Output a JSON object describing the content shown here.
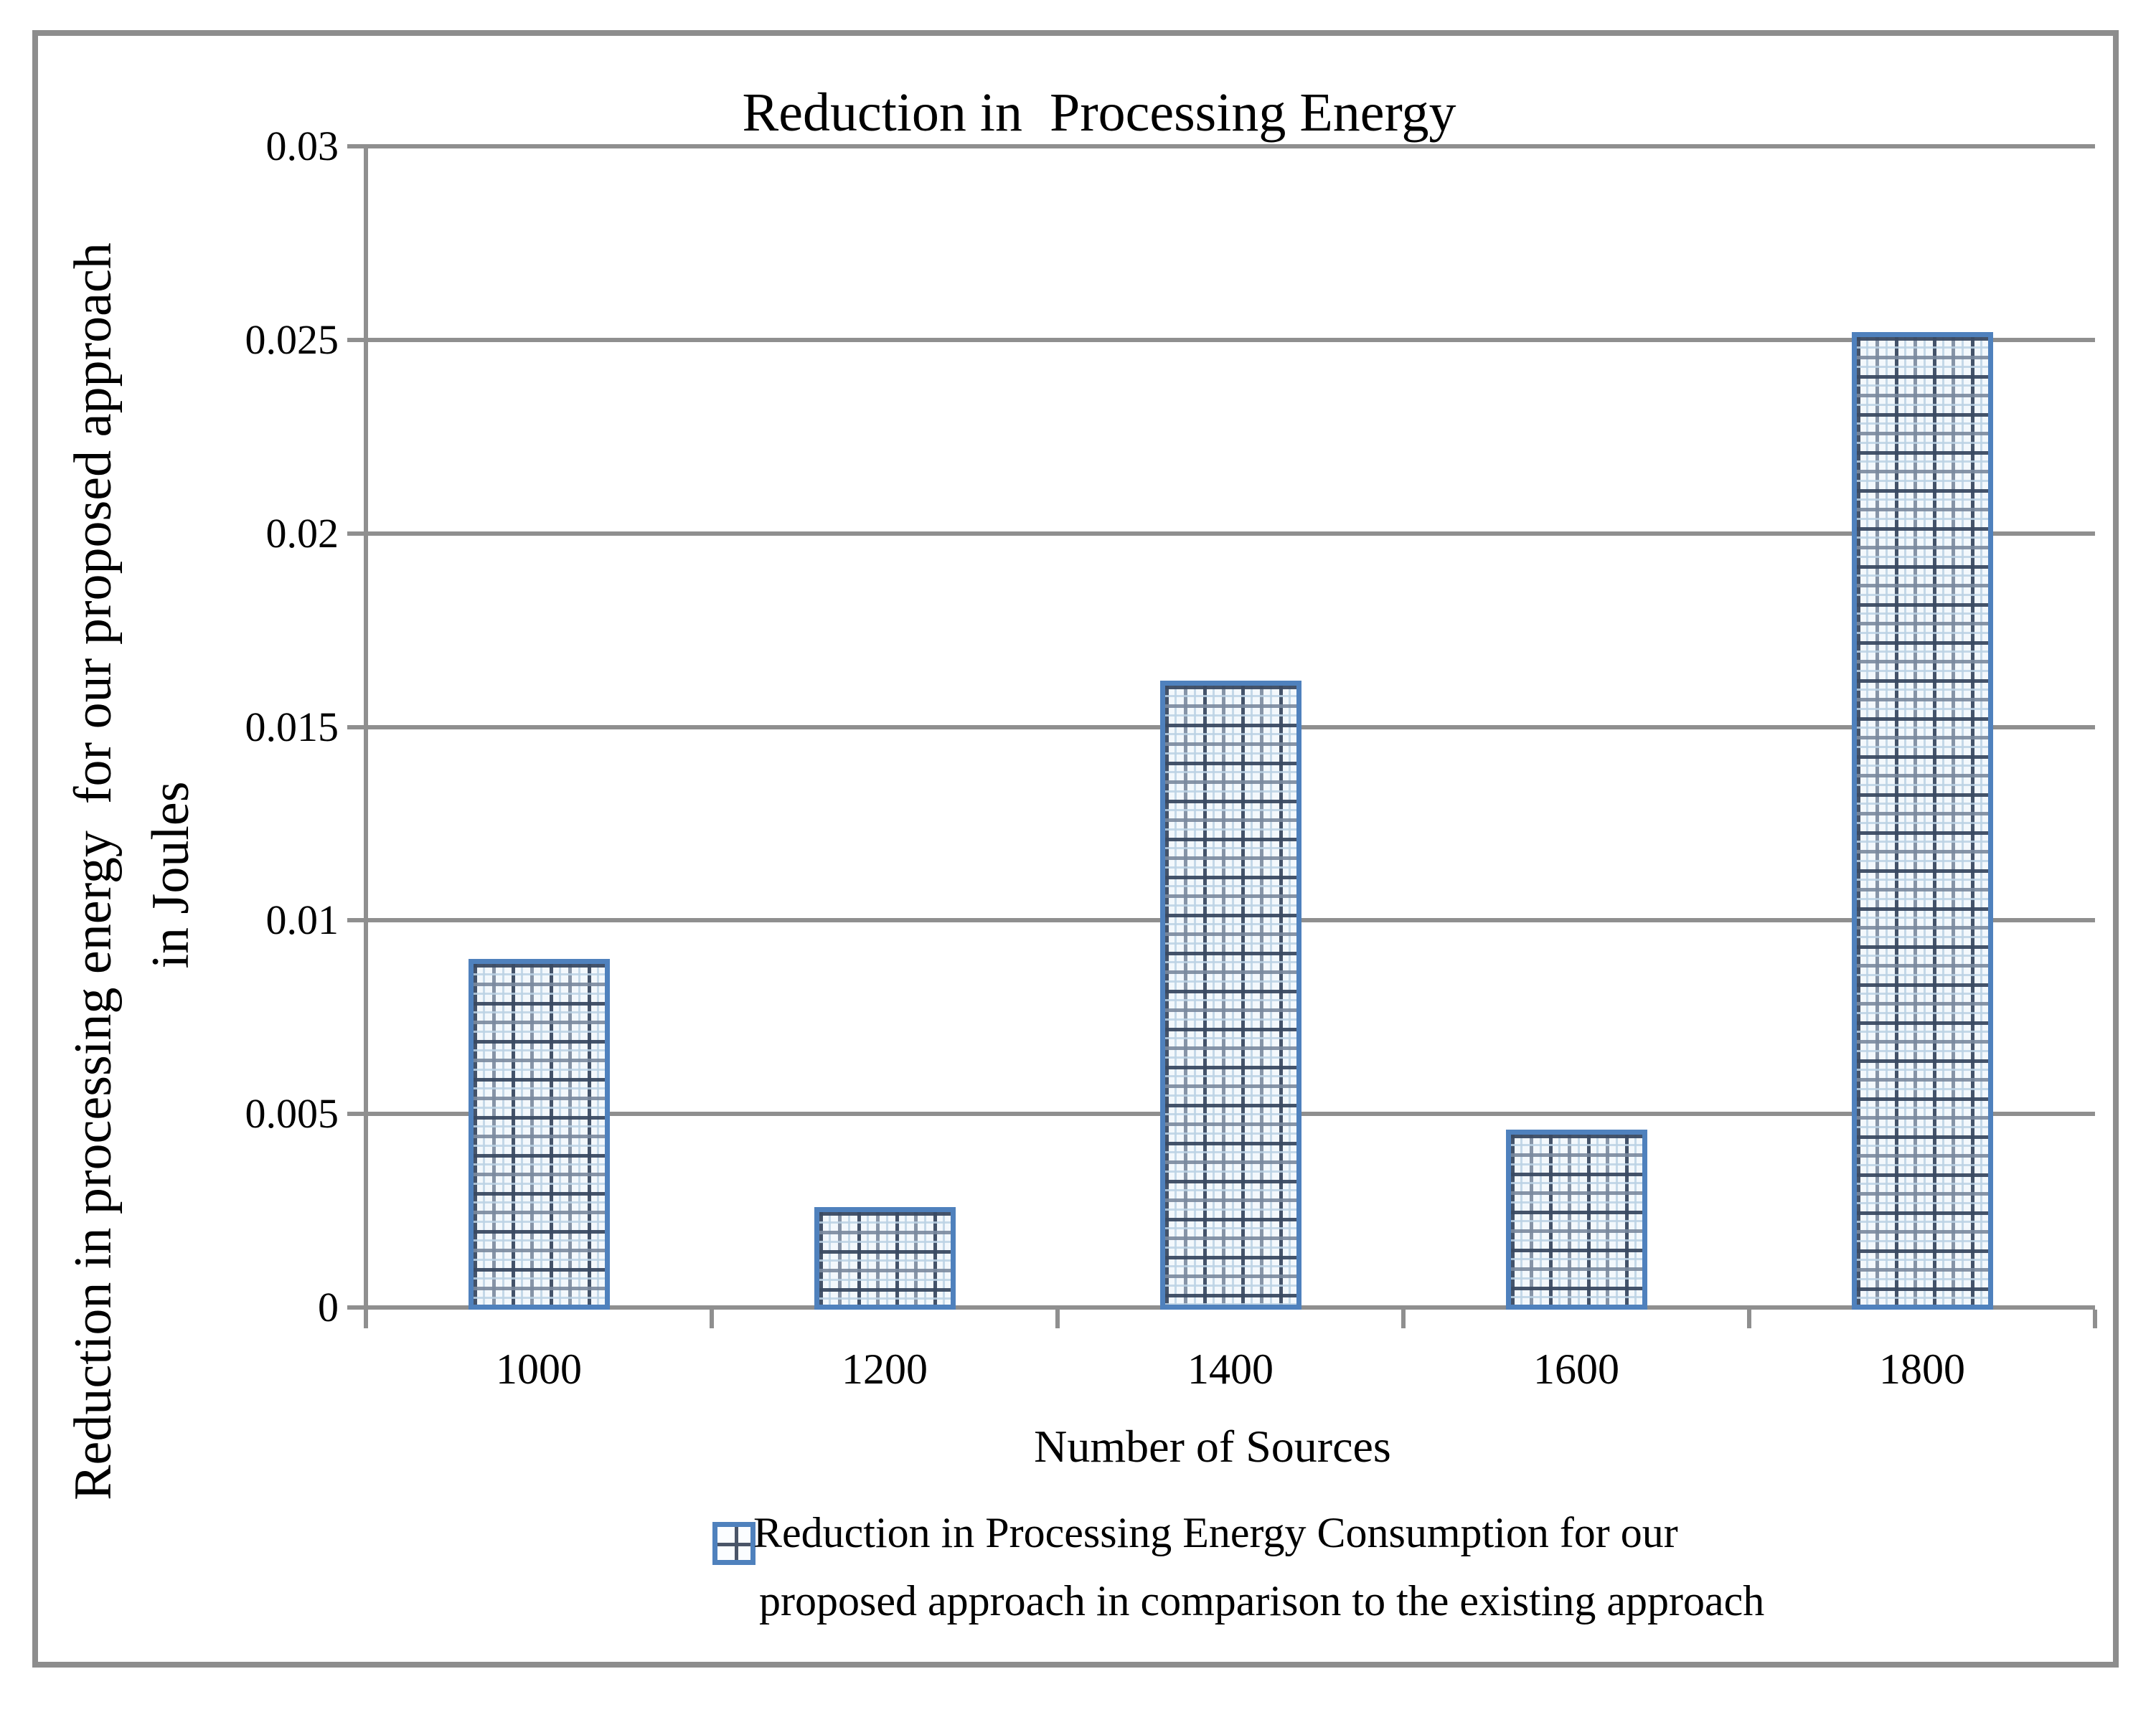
{
  "title": "Reduction in  Processing Energy",
  "y_axis": {
    "title_line1": "Reduction in processing energy  for our proposed approach",
    "title_line2": "in Joules",
    "tick_labels": [
      "0",
      "0.005",
      "0.01",
      "0.015",
      "0.02",
      "0.025",
      "0.03"
    ]
  },
  "x_axis": {
    "title": "Number of Sources",
    "tick_labels": [
      "1000",
      "1200",
      "1400",
      "1600",
      "1800"
    ]
  },
  "legend": {
    "line1": "Reduction in Processing Energy Consumption for our",
    "line2": "proposed approach in comparison to the existing approach",
    "marker": "crosshatch-square"
  },
  "colors": {
    "bar_border": "#4f81bd",
    "gridline": "#8f8f8f",
    "figure_border": "#8d8d8d",
    "text": "#000000"
  },
  "chart_data": {
    "type": "bar",
    "title": "Reduction in  Processing Energy",
    "categories": [
      "1000",
      "1200",
      "1400",
      "1600",
      "1800"
    ],
    "series": [
      {
        "name": "Reduction in Processing Energy Consumption for our proposed approach in comparison to the existing approach",
        "values": [
          0.009,
          0.0026,
          0.0162,
          0.0046,
          0.0252
        ]
      }
    ],
    "xlabel": "Number of Sources",
    "ylabel": "Reduction in processing energy  for our proposed approach in Joules",
    "ylim": [
      0,
      0.03
    ],
    "yticks": [
      0,
      0.005,
      0.01,
      0.015,
      0.02,
      0.025,
      0.03
    ],
    "ytick_labels": [
      "0",
      "0.005",
      "0.01",
      "0.015",
      "0.02",
      "0.025",
      "0.03"
    ],
    "grid": true,
    "legend_position": "bottom",
    "bar_fill_pattern": "small-grid-crosshatch",
    "bar_border_color": "#4f81bd",
    "gridline_color": "#8f8f8f"
  }
}
